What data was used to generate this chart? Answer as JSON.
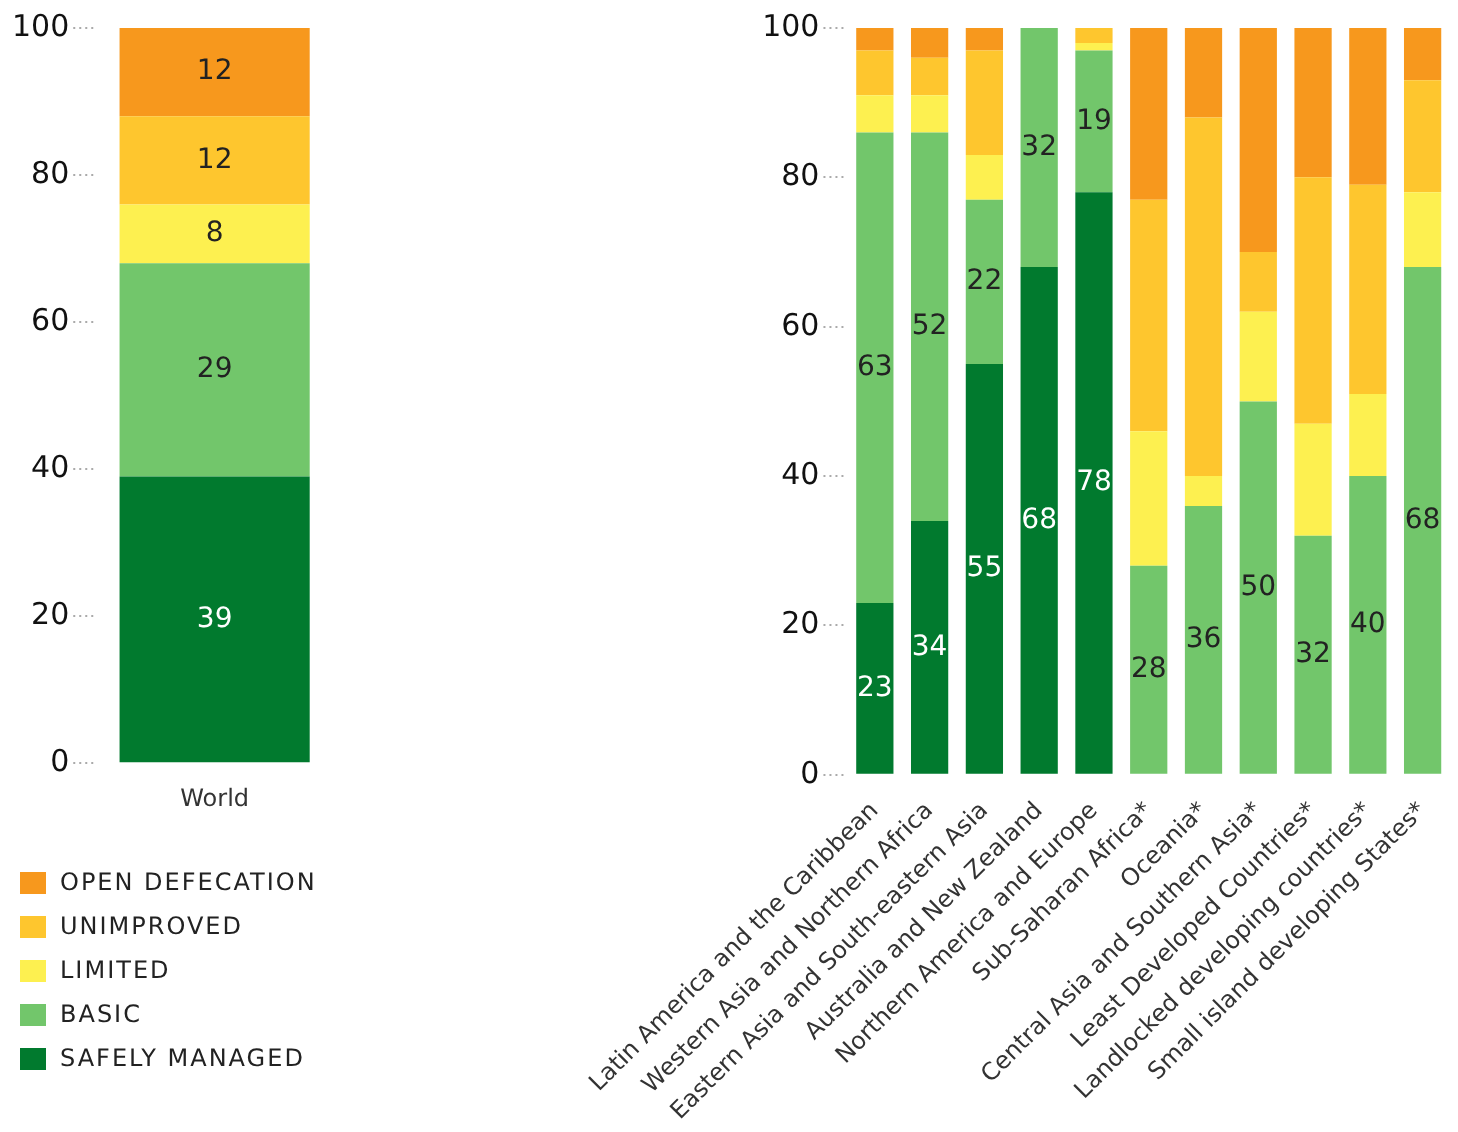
{
  "chart_data": [
    {
      "type": "bar",
      "stacked": true,
      "categories": [
        "World"
      ],
      "ylim": [
        0,
        100
      ],
      "yticks": [
        0,
        20,
        40,
        60,
        80,
        100
      ],
      "grid": false,
      "legend": "bottom",
      "data_labels": true,
      "series": [
        {
          "name": "SAFELY MANAGED",
          "color": "#017a2e",
          "values": [
            39
          ]
        },
        {
          "name": "BASIC",
          "color": "#72c66b",
          "values": [
            29
          ]
        },
        {
          "name": "LIMITED",
          "color": "#fdf050",
          "values": [
            8
          ]
        },
        {
          "name": "UNIMPROVED",
          "color": "#fec62e",
          "values": [
            12
          ]
        },
        {
          "name": "OPEN DEFECATION",
          "color": "#f7981d",
          "values": [
            12
          ]
        }
      ]
    },
    {
      "type": "bar",
      "stacked": true,
      "categories": [
        "Latin America and the Caribbean",
        "Western Asia and Northern Africa",
        "Eastern Asia and South-eastern Asia",
        "Australia and New Zealand",
        "Northern America and Europe",
        "Sub-Saharan Africa*",
        "Oceania*",
        "Central Asia and Southern Asia*",
        "Least Developed Countries*",
        "Landlocked developing countries*",
        "Small island developing States*"
      ],
      "ylim": [
        0,
        100
      ],
      "yticks": [
        0,
        20,
        40,
        60,
        80,
        100
      ],
      "grid": false,
      "series": [
        {
          "color": "#017a2e",
          "values": [
            23,
            34,
            55,
            68,
            78,
            null,
            null,
            null,
            null,
            null,
            null
          ],
          "value_labels": [
            "23",
            "34",
            "55",
            "68",
            "78",
            null,
            null,
            null,
            null,
            null,
            null
          ]
        },
        {
          "color": "#72c66b",
          "values": [
            63,
            52,
            22,
            32,
            19,
            28,
            36,
            50,
            32,
            40,
            68
          ],
          "value_labels": [
            "63",
            "52",
            "22",
            "32",
            "19",
            "28",
            "36",
            "50",
            "32",
            "40",
            "68"
          ]
        },
        {
          "color": "#fdf050",
          "values": [
            5,
            5,
            6,
            null,
            1,
            18,
            4,
            12,
            15,
            11,
            10
          ]
        },
        {
          "color": "#fec62e",
          "values": [
            6,
            5,
            14,
            null,
            2,
            31,
            48,
            8,
            33,
            28,
            15
          ]
        },
        {
          "color": "#f7981d",
          "values": [
            3,
            4,
            3,
            null,
            null,
            23,
            12,
            30,
            20,
            21,
            7
          ]
        }
      ]
    }
  ]
}
